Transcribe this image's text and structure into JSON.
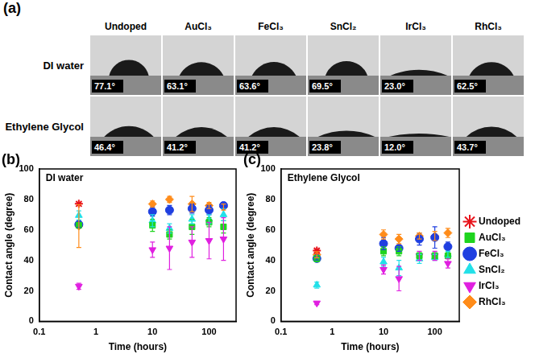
{
  "panel_labels": [
    "(a)",
    "(b)",
    "(c)"
  ],
  "table": {
    "columns": [
      "Undoped",
      "AuCl₃",
      "FeCl₃",
      "SnCl₂",
      "IrCl₃",
      "RhCl₃"
    ],
    "rows": [
      {
        "label": "DI water",
        "cells": [
          {
            "value": 77.1,
            "label": "77.1°"
          },
          {
            "value": 63.1,
            "label": "63.1°"
          },
          {
            "value": 63.6,
            "label": "63.6°"
          },
          {
            "value": 69.5,
            "label": "69.5°"
          },
          {
            "value": 23.0,
            "label": "23.0°"
          },
          {
            "value": 62.5,
            "label": "62.5°"
          }
        ]
      },
      {
        "label": "Ethylene Glycol",
        "cells": [
          {
            "value": 46.4,
            "label": "46.4°"
          },
          {
            "value": 41.2,
            "label": "41.2°"
          },
          {
            "value": 41.2,
            "label": "41.2°"
          },
          {
            "value": 23.8,
            "label": "23.8°"
          },
          {
            "value": 12.0,
            "label": "12.0°"
          },
          {
            "value": 43.7,
            "label": "43.7°"
          }
        ]
      }
    ]
  },
  "chart_data": [
    {
      "type": "scatter",
      "annotation": "DI water",
      "x_label": "Time (hours)",
      "y_label": "Contact angle (degree)",
      "log": "x",
      "xlim": [
        0.1,
        300
      ],
      "xticks": [
        0.1,
        1,
        10,
        100
      ],
      "ylim": [
        0,
        100
      ],
      "yticks": [
        0,
        20,
        40,
        60,
        80,
        100
      ],
      "grid": false,
      "series": [
        {
          "name": "Undoped",
          "color": "#e8131b",
          "marker": "star",
          "x": [
            0.5
          ],
          "values": [
            77.1
          ],
          "errors": [
            1
          ]
        },
        {
          "name": "AuCl₃",
          "color": "#1ed41e",
          "marker": "square",
          "x": [
            0.5,
            10,
            20,
            50,
            100,
            180
          ],
          "values": [
            63.1,
            63,
            57,
            62,
            65,
            62
          ],
          "errors": [
            2,
            4,
            3,
            5,
            3,
            4
          ]
        },
        {
          "name": "FeCl₃",
          "color": "#1f3fe0",
          "marker": "circle",
          "x": [
            0.5,
            10,
            20,
            50,
            100,
            180
          ],
          "values": [
            63.6,
            72,
            73,
            74,
            73,
            76
          ],
          "errors": [
            2,
            3,
            3,
            3,
            3,
            2
          ]
        },
        {
          "name": "SnCl₂",
          "color": "#22e0e8",
          "marker": "triangle",
          "x": [
            0.5,
            10,
            20,
            50,
            100,
            180
          ],
          "values": [
            69.5,
            66,
            61,
            67,
            67,
            70
          ],
          "errors": [
            3,
            4,
            3,
            3,
            3,
            4
          ]
        },
        {
          "name": "IrCl₃",
          "color": "#e020e0",
          "marker": "triangle_down",
          "x": [
            0.5,
            10,
            20,
            50,
            100,
            180
          ],
          "values": [
            23.0,
            47,
            48,
            52,
            53,
            54
          ],
          "errors": [
            2,
            5,
            14,
            10,
            12,
            14
          ]
        },
        {
          "name": "RhCl₃",
          "color": "#ff8c1a",
          "marker": "diamond",
          "x": [
            0.5,
            10,
            20,
            50,
            100,
            180
          ],
          "values": [
            62.5,
            77,
            80,
            77,
            76,
            75
          ],
          "errors": [
            14,
            2,
            2,
            5,
            2,
            2
          ]
        }
      ]
    },
    {
      "type": "scatter",
      "annotation": "Ethylene Glycol",
      "x_label": "Time (hours)",
      "y_label": "Contact angle (degree)",
      "log": "x",
      "xlim": [
        0.1,
        300
      ],
      "xticks": [
        0.1,
        1,
        10,
        100
      ],
      "ylim": [
        0,
        100
      ],
      "yticks": [
        0,
        20,
        40,
        60,
        80,
        100
      ],
      "grid": false,
      "legend": "right",
      "series": [
        {
          "name": "Undoped",
          "color": "#e8131b",
          "marker": "star",
          "x": [
            0.5
          ],
          "values": [
            46.4
          ],
          "errors": [
            1
          ]
        },
        {
          "name": "AuCl₃",
          "color": "#1ed41e",
          "marker": "square",
          "x": [
            0.5,
            10,
            20,
            50,
            100,
            180
          ],
          "values": [
            41.2,
            46,
            46,
            43,
            43,
            43
          ],
          "errors": [
            2,
            3,
            3,
            2,
            2,
            2
          ]
        },
        {
          "name": "FeCl₃",
          "color": "#1f3fe0",
          "marker": "circle",
          "x": [
            0.5,
            10,
            20,
            50,
            100,
            180
          ],
          "values": [
            41.2,
            51,
            48,
            54,
            55,
            49
          ],
          "errors": [
            1,
            4,
            2,
            4,
            7,
            3
          ]
        },
        {
          "name": "SnCl₂",
          "color": "#22e0e8",
          "marker": "triangle",
          "x": [
            0.5,
            10,
            20,
            50,
            100,
            180
          ],
          "values": [
            23.8,
            39,
            35,
            41,
            42,
            44
          ],
          "errors": [
            2,
            3,
            5,
            3,
            2,
            2
          ]
        },
        {
          "name": "IrCl₃",
          "color": "#e020e0",
          "marker": "triangle_down",
          "x": [
            0.5,
            10,
            20,
            50,
            100,
            180
          ],
          "values": [
            12.0,
            34,
            28,
            43,
            43,
            38
          ],
          "errors": [
            1,
            3,
            8,
            3,
            3,
            3
          ]
        },
        {
          "name": "RhCl₃",
          "color": "#ff8c1a",
          "marker": "diamond",
          "x": [
            0.5,
            10,
            20,
            50,
            100,
            180
          ],
          "values": [
            43.7,
            57,
            54,
            56,
            56,
            58
          ],
          "errors": [
            2,
            3,
            3,
            2,
            3,
            3
          ]
        }
      ]
    }
  ]
}
